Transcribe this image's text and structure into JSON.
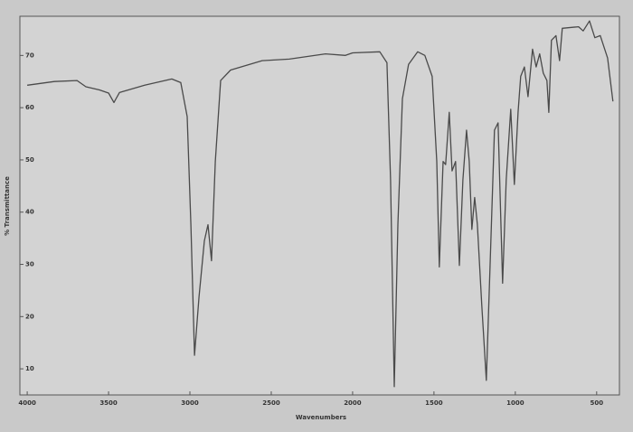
{
  "chart_data": {
    "type": "line",
    "x_label": "Wavenumbers",
    "y_label": "% Transmittance",
    "xlim": [
      4045,
      360
    ],
    "ylim": [
      5,
      77.5
    ],
    "xticks": [
      4000,
      3500,
      3000,
      2500,
      2000,
      1500,
      1000,
      500
    ],
    "yticks": [
      10,
      20,
      30,
      40,
      50,
      60,
      70
    ],
    "color": "#4a4a4a",
    "x": [
      4000,
      3833,
      3694,
      3639,
      3556,
      3500,
      3467,
      3433,
      3278,
      3111,
      3056,
      3017,
      2994,
      2972,
      2944,
      2911,
      2889,
      2867,
      2844,
      2811,
      2750,
      2556,
      2389,
      2167,
      2044,
      2000,
      1833,
      1789,
      1767,
      1744,
      1722,
      1694,
      1656,
      1600,
      1556,
      1511,
      1483,
      1467,
      1444,
      1428,
      1406,
      1389,
      1367,
      1344,
      1322,
      1300,
      1283,
      1267,
      1250,
      1233,
      1206,
      1178,
      1156,
      1128,
      1106,
      1078,
      1056,
      1028,
      1006,
      983,
      967,
      944,
      922,
      894,
      872,
      850,
      828,
      806,
      794,
      778,
      750,
      728,
      711,
      611,
      583,
      544,
      511,
      478,
      433,
      400
    ],
    "values": [
      64.3,
      65.0,
      65.2,
      64.0,
      63.4,
      62.8,
      61.0,
      62.9,
      64.3,
      65.5,
      64.8,
      58.3,
      37.6,
      12.6,
      23.8,
      34.5,
      37.6,
      30.7,
      49.7,
      65.2,
      67.2,
      69.0,
      69.3,
      70.3,
      70.0,
      70.5,
      70.7,
      68.6,
      46.2,
      6.6,
      37.6,
      61.7,
      68.3,
      70.7,
      70.0,
      66.0,
      49.7,
      29.5,
      49.7,
      49.1,
      59.1,
      47.9,
      49.7,
      29.8,
      46.2,
      55.7,
      49.7,
      36.7,
      42.8,
      37.6,
      22.1,
      7.8,
      29.0,
      55.7,
      57.1,
      26.4,
      46.2,
      59.7,
      45.3,
      59.1,
      66.0,
      67.8,
      62.1,
      71.2,
      67.8,
      70.3,
      66.6,
      65.2,
      59.1,
      72.9,
      73.8,
      69.0,
      75.2,
      75.5,
      74.7,
      76.6,
      73.4,
      73.8,
      69.5,
      61.2
    ]
  }
}
